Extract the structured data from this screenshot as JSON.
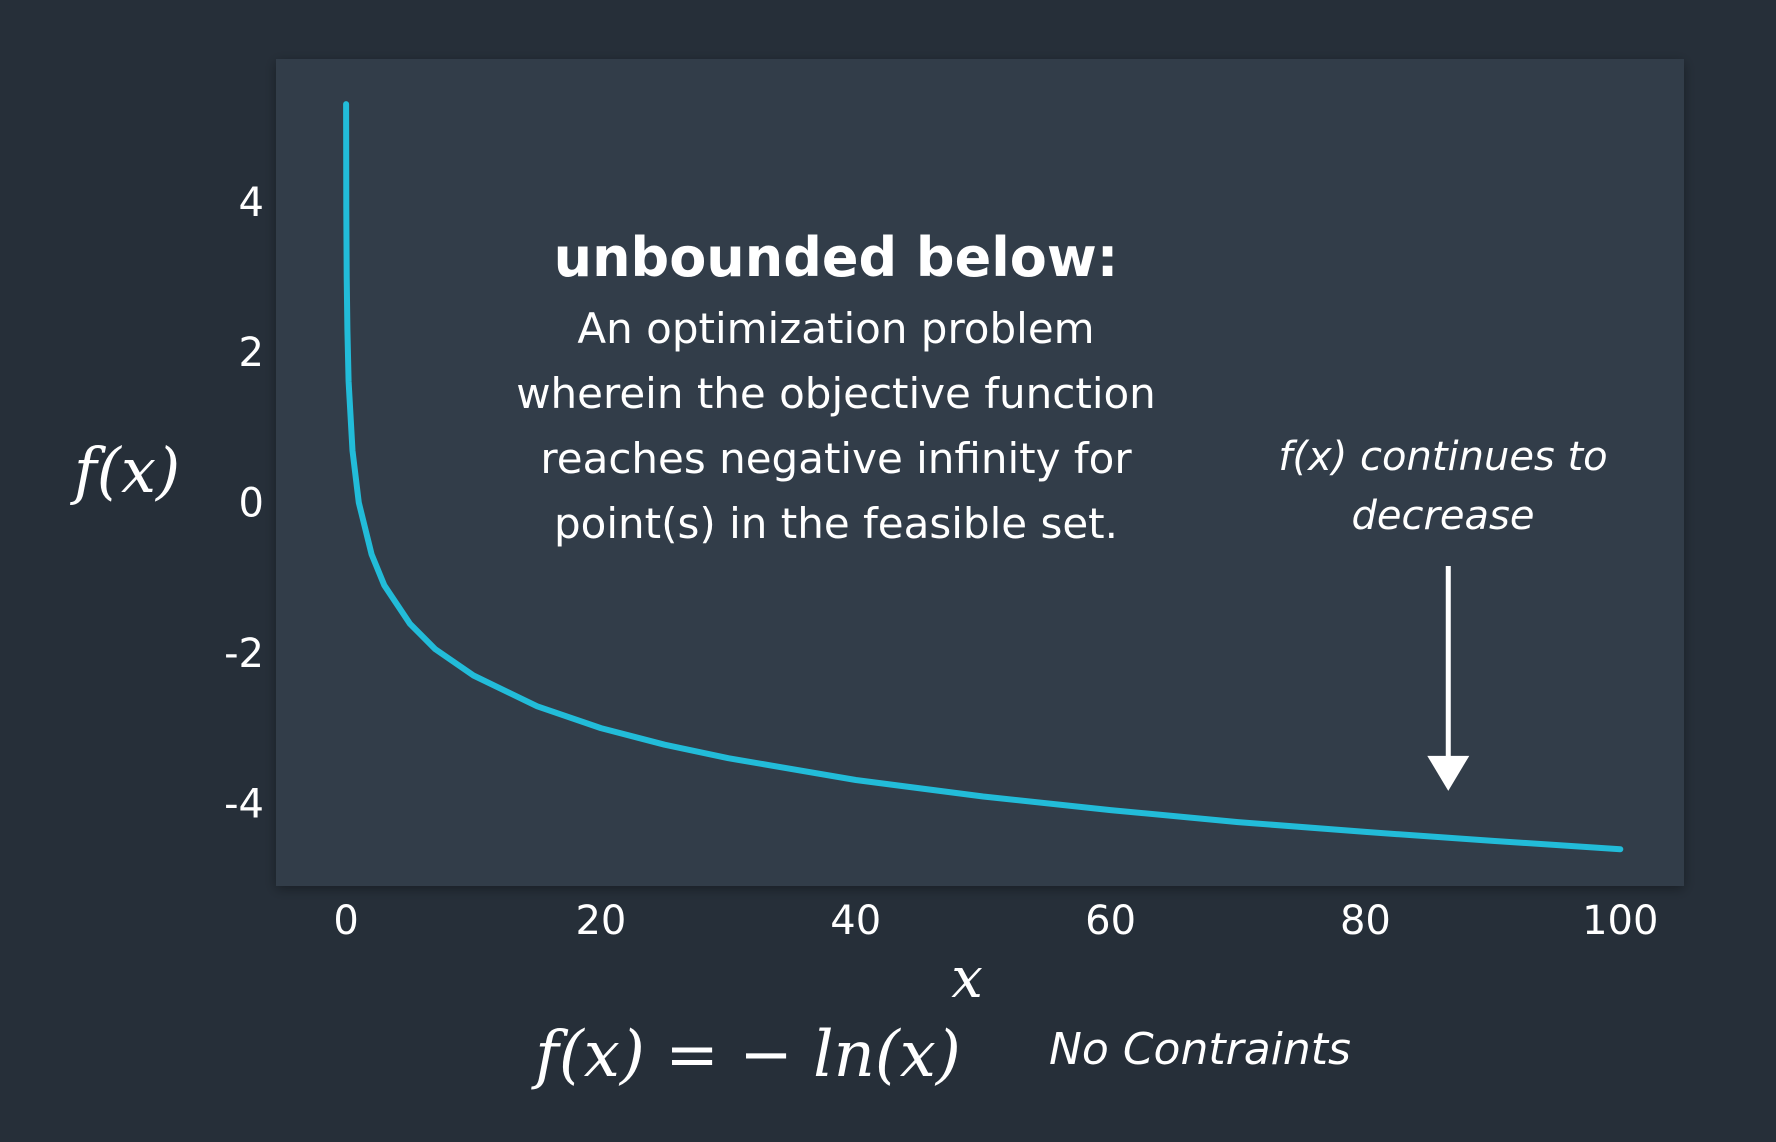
{
  "chart_data": {
    "type": "line",
    "function": "f(x) = -ln(x)",
    "series": [
      {
        "color": "#22bcd9",
        "x": [
          0.005,
          0.01,
          0.02,
          0.05,
          0.1,
          0.2,
          0.5,
          1,
          2,
          3,
          5,
          7,
          10,
          15,
          20,
          25,
          30,
          40,
          50,
          60,
          70,
          80,
          90,
          100
        ],
        "y": [
          5.3,
          4.61,
          3.91,
          3.0,
          2.3,
          1.61,
          0.69,
          0.0,
          -0.69,
          -1.1,
          -1.61,
          -1.95,
          -2.3,
          -2.71,
          -3.0,
          -3.22,
          -3.4,
          -3.69,
          -3.91,
          -4.09,
          -4.25,
          -4.38,
          -4.5,
          -4.61
        ]
      }
    ],
    "xlabel": "x",
    "ylabel": "f(x)",
    "xlim": [
      -5.5,
      105
    ],
    "ylim": [
      -5.1,
      5.9
    ],
    "xticks": [
      0,
      20,
      40,
      60,
      80,
      100
    ],
    "yticks": [
      4,
      2,
      0,
      -2,
      -4
    ],
    "grid": false,
    "colors": {
      "page_background": "#262f39",
      "plot_background": "#313c48",
      "line": "#22bcd9",
      "text": "#ffffff"
    }
  },
  "annotations": {
    "definition_title": "unbounded below:",
    "definition_lines": [
      "An optimization problem",
      "wherein the objective function",
      "reaches negative infinity for",
      "point(s) in the feasible set."
    ],
    "arrow_label_lines": [
      "f(x) continues to",
      "decrease"
    ],
    "arrow_points_to": {
      "x": 86.5,
      "y": -4.1
    }
  },
  "footer": {
    "equation": "f(x) = − ln(x)",
    "constraint_note": "No Contraints"
  }
}
